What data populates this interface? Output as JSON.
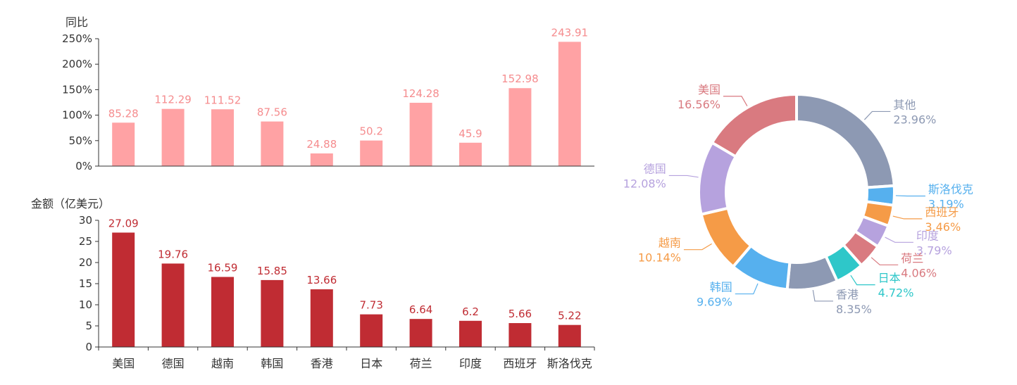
{
  "chart_data": [
    {
      "type": "bar",
      "ylabel": "同比",
      "categories": [
        "美国",
        "德国",
        "越南",
        "韩国",
        "香港",
        "日本",
        "荷兰",
        "印度",
        "西班牙",
        "斯洛伐克"
      ],
      "values": [
        85.28,
        112.29,
        111.52,
        87.56,
        24.88,
        50.2,
        124.28,
        45.9,
        152.98,
        243.91
      ],
      "ylim": [
        0,
        250
      ],
      "yticks": [
        "0%",
        "50%",
        "100%",
        "150%",
        "200%",
        "250%"
      ],
      "color": "#FFA2A4",
      "label_color": "#F58C8E"
    },
    {
      "type": "bar",
      "ylabel": "金额（亿美元）",
      "categories": [
        "美国",
        "德国",
        "越南",
        "韩国",
        "香港",
        "日本",
        "荷兰",
        "印度",
        "西班牙",
        "斯洛伐克"
      ],
      "values": [
        27.09,
        19.76,
        16.59,
        15.85,
        13.66,
        7.73,
        6.64,
        6.2,
        5.66,
        5.22
      ],
      "ylim": [
        0,
        30
      ],
      "yticks": [
        "0",
        "5",
        "10",
        "15",
        "20",
        "25",
        "30"
      ],
      "color": "#C02C33",
      "label_color": "#C02C33"
    },
    {
      "type": "pie",
      "donut": true,
      "slices": [
        {
          "name": "其他",
          "value": 23.96,
          "label": "23.96%",
          "color": "#8D99B3"
        },
        {
          "name": "斯洛伐克",
          "value": 3.19,
          "label": "3.19%",
          "color": "#56B0EE"
        },
        {
          "name": "西班牙",
          "value": 3.46,
          "label": "3.46%",
          "color": "#F59B47"
        },
        {
          "name": "印度",
          "value": 3.79,
          "label": "3.79%",
          "color": "#B6A2DE"
        },
        {
          "name": "荷兰",
          "value": 4.06,
          "label": "4.06%",
          "color": "#D97A80"
        },
        {
          "name": "日本",
          "value": 4.72,
          "label": "4.72%",
          "color": "#2EC7C9"
        },
        {
          "name": "香港",
          "value": 8.35,
          "label": "8.35%",
          "color": "#8D99B3"
        },
        {
          "name": "韩国",
          "value": 9.69,
          "label": "9.69%",
          "color": "#56B0EE"
        },
        {
          "name": "越南",
          "value": 10.14,
          "label": "10.14%",
          "color": "#F59B47"
        },
        {
          "name": "德国",
          "value": 12.08,
          "label": "12.08%",
          "color": "#B6A2DE"
        },
        {
          "name": "美国",
          "value": 16.56,
          "label": "16.56%",
          "color": "#D97A80"
        }
      ]
    }
  ]
}
